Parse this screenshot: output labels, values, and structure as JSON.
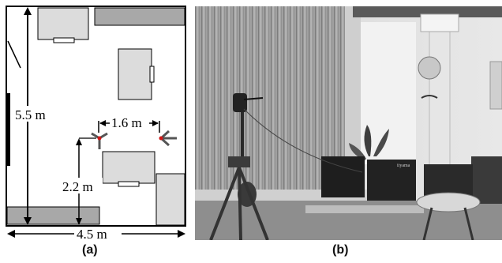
{
  "figure": {
    "panel_a_label": "(a)",
    "panel_b_label": "(b)"
  },
  "floorplan": {
    "height_label": "5.5 m",
    "spacing_label": "1.6 m",
    "array_height_label": "2.2 m",
    "width_label": "4.5 m",
    "colors": {
      "wall": "#000000",
      "furniture_gray": "#dcdcdc",
      "dark_gray": "#a8a8a8",
      "marker_red": "#d01818"
    }
  },
  "photo": {
    "monitor_brand": "iiyama",
    "description_icons": [
      "window-blinds",
      "microphone-stand",
      "loudspeaker",
      "tripod",
      "monitors",
      "turntable",
      "reflector-pole",
      "chair",
      "plant"
    ]
  }
}
